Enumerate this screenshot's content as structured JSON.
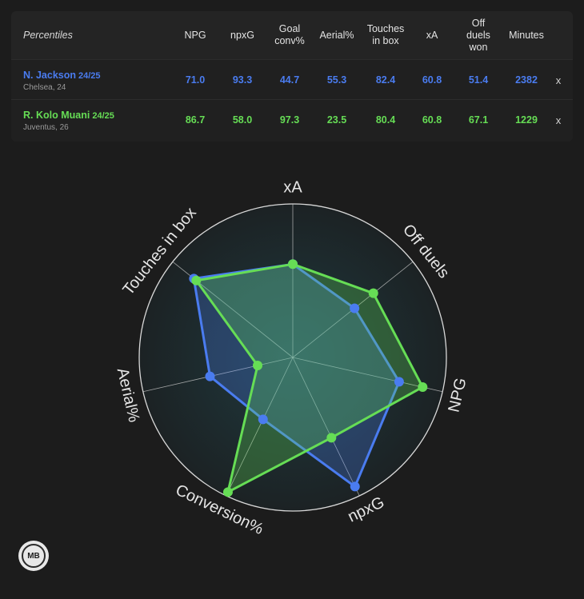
{
  "table": {
    "title": "Percentiles",
    "headers": [
      "NPG",
      "npxG",
      "Goal\nconv%",
      "Aerial%",
      "Touches\nin box",
      "xA",
      "Off\nduels\nwon",
      "Minutes"
    ],
    "remove_label": "x",
    "players": [
      {
        "name": "N. Jackson",
        "season": "24/25",
        "club": "Chelsea, 24",
        "color": "#4a7cf0",
        "values": [
          "71.0",
          "93.3",
          "44.7",
          "55.3",
          "82.4",
          "60.8",
          "51.4",
          "2382"
        ]
      },
      {
        "name": "R. Kolo Muani",
        "season": "24/25",
        "club": "Juventus, 26",
        "color": "#66dd55",
        "values": [
          "86.7",
          "58.0",
          "97.3",
          "23.5",
          "80.4",
          "60.8",
          "67.1",
          "1229"
        ]
      }
    ]
  },
  "chart_data": {
    "type": "radar",
    "axes": [
      "xA",
      "Off duels",
      "NPG",
      "npxG",
      "Conversion%",
      "Aerial%",
      "Touches in box"
    ],
    "range": [
      0,
      100
    ],
    "series": [
      {
        "name": "N. Jackson",
        "color": "#4a7cf0",
        "values": [
          60.8,
          51.4,
          71.0,
          93.3,
          44.7,
          55.3,
          82.4
        ]
      },
      {
        "name": "R. Kolo Muani",
        "color": "#66dd55",
        "values": [
          60.8,
          67.1,
          86.7,
          58.0,
          97.3,
          23.5,
          80.4
        ]
      }
    ]
  },
  "logo": {
    "text": "MB"
  }
}
